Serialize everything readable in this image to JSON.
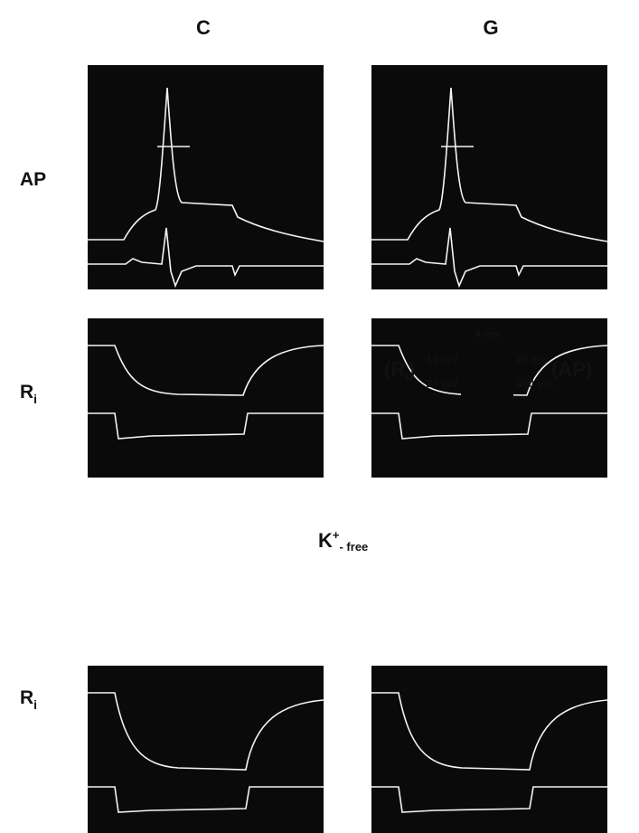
{
  "columns": [
    "C",
    "G"
  ],
  "rows": [
    {
      "label": "AP"
    },
    {
      "label": "R",
      "label_sub": "i"
    },
    {
      "label": "R",
      "label_sub": "i"
    }
  ],
  "scale_bar": {
    "time": "4 ms",
    "left_name": "R",
    "left_name_sub": "i",
    "left_top": "10 mV",
    "left_bottom": "20 mV",
    "right_top": "40 mV",
    "right_bottom": "400 V/s",
    "right_name": "AP"
  },
  "condition": {
    "ion": "K",
    "charge": "+",
    "text": "- free"
  }
}
